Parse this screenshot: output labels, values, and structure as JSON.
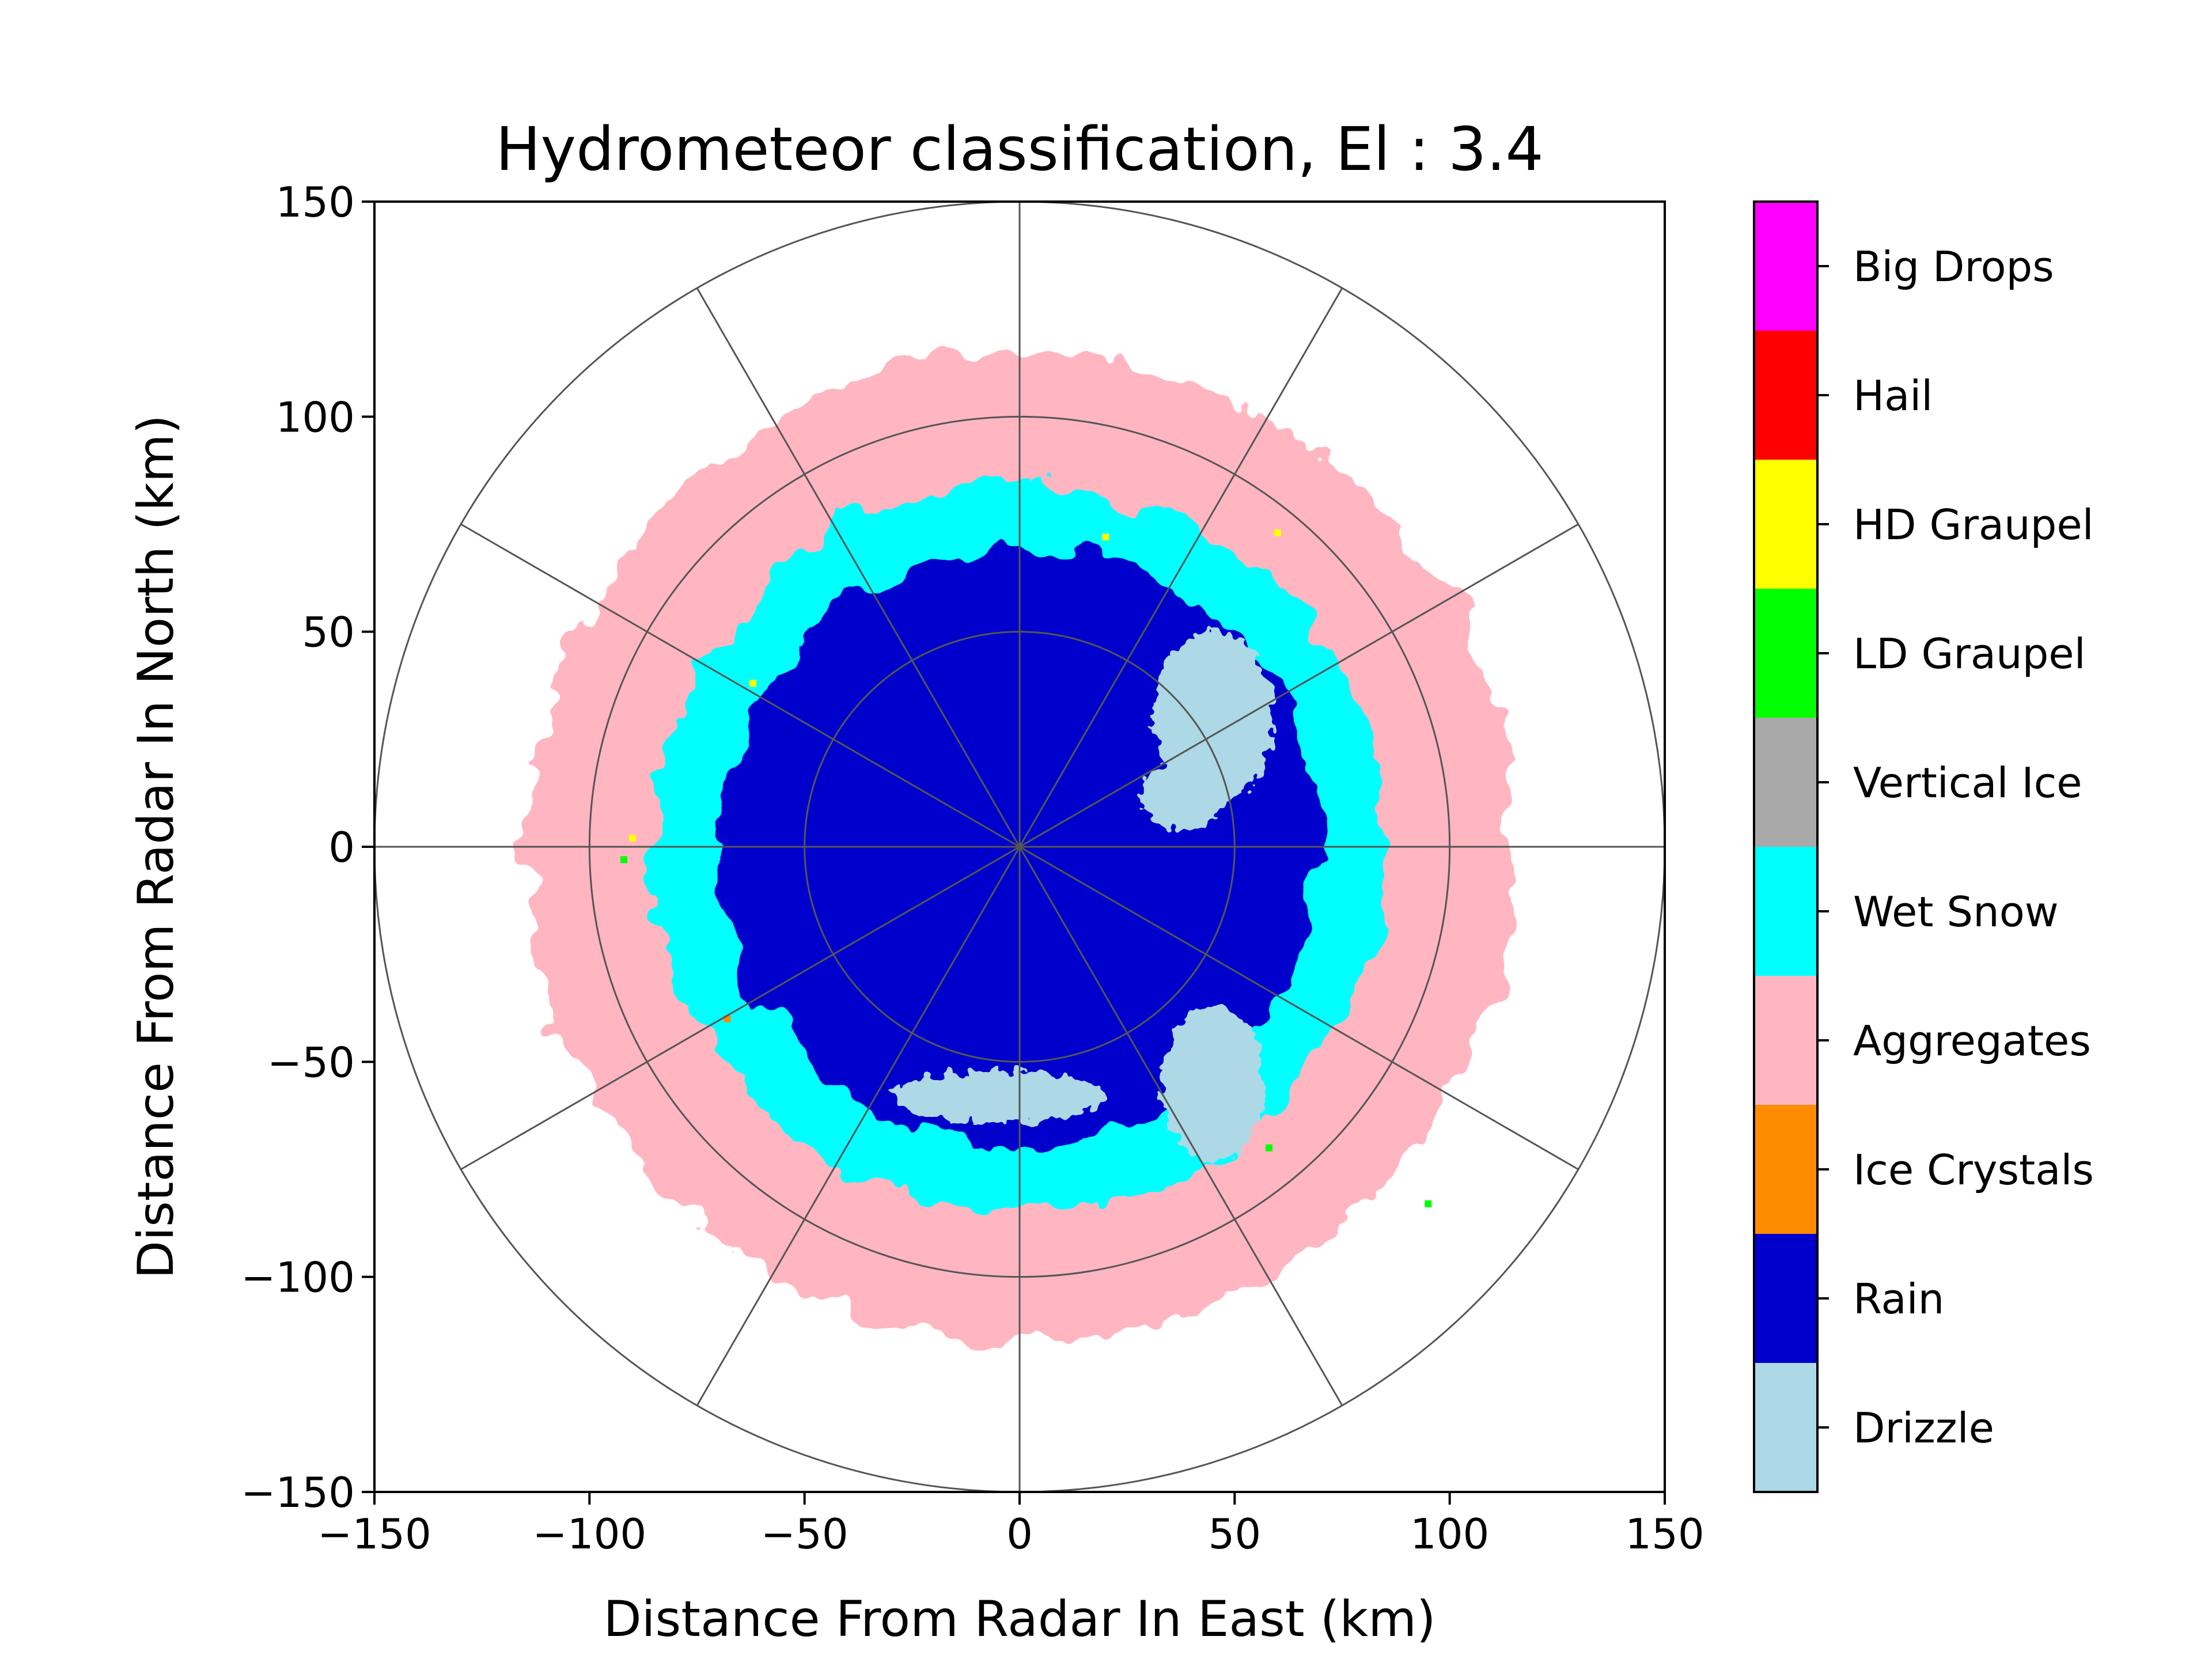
{
  "chart_data": {
    "type": "heatmap",
    "title": "Hydrometeor classification, El : 3.4",
    "xlabel": "Distance From Radar In East (km)",
    "ylabel": "Distance From Radar In North (km)",
    "xlim": [
      -150,
      150
    ],
    "ylim": [
      -150,
      150
    ],
    "x_ticks": [
      -150,
      -100,
      -50,
      0,
      50,
      100,
      150
    ],
    "y_ticks": [
      -150,
      -100,
      -50,
      0,
      50,
      100,
      150
    ],
    "x_tick_labels": [
      "−150",
      "−100",
      "−50",
      "0",
      "50",
      "100",
      "150"
    ],
    "y_tick_labels": [
      "−150",
      "−100",
      "−50",
      "0",
      "50",
      "100",
      "150"
    ],
    "range_rings_km": [
      50,
      100,
      150
    ],
    "azimuth_spokes_deg": [
      0,
      30,
      60,
      90,
      120,
      150,
      180,
      210,
      240,
      270,
      300,
      330
    ],
    "classes": [
      {
        "label": "Drizzle",
        "color": "#add8e6"
      },
      {
        "label": "Rain",
        "color": "#0000cd"
      },
      {
        "label": "Ice Crystals",
        "color": "#ff8c00"
      },
      {
        "label": "Aggregates",
        "color": "#ffb6c1"
      },
      {
        "label": "Wet Snow",
        "color": "#00ffff"
      },
      {
        "label": "Vertical Ice",
        "color": "#a9a9a9"
      },
      {
        "label": "LD Graupel",
        "color": "#00ff00"
      },
      {
        "label": "HD Graupel",
        "color": "#ffff00"
      },
      {
        "label": "Hail",
        "color": "#ff0000"
      },
      {
        "label": "Big Drops",
        "color": "#ff00ff"
      }
    ],
    "regions_km": {
      "aggregates_outer_radius": 115,
      "wet_snow_outer_radius": 85,
      "rain_outer_radius": 70
    },
    "legend_placement": "right colorbar",
    "grid": true
  }
}
